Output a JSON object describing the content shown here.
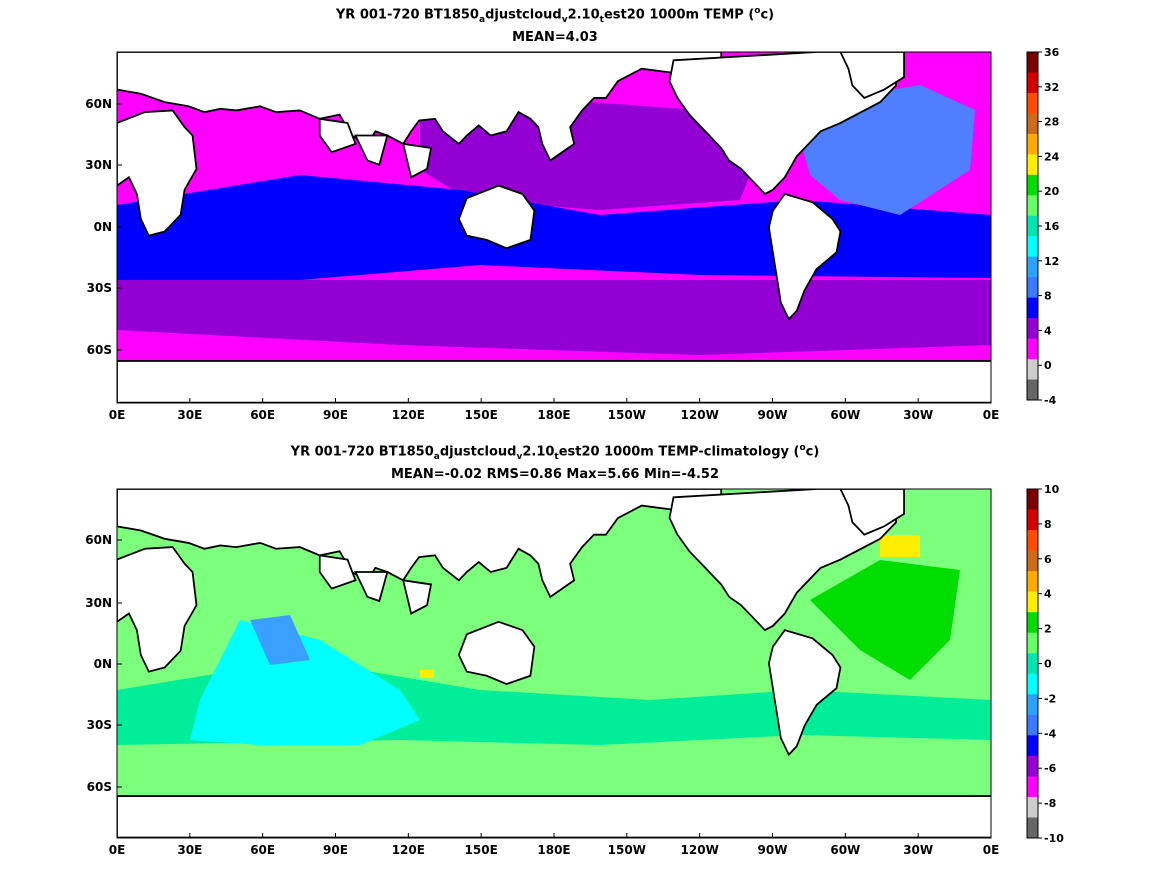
{
  "maps": [
    {
      "title_parts": {
        "a": "YR 001-720 BT1850",
        "sub1": "a",
        "b": "djustcloud",
        "sub2": "v",
        "c": "2.10",
        "sub3": "t",
        "d": "est20 1000m TEMP (",
        "sup": "o",
        "e": "c)"
      },
      "subtitle": "MEAN=4.03",
      "x_ticks": [
        "0E",
        "30E",
        "60E",
        "90E",
        "120E",
        "150E",
        "180E",
        "150W",
        "120W",
        "90W",
        "60W",
        "30W",
        "0E"
      ],
      "y_ticks": [
        "60N",
        "30N",
        "0N",
        "30S",
        "60S"
      ],
      "colorbar_ticks": [
        "36",
        "32",
        "28",
        "24",
        "20",
        "16",
        "12",
        "8",
        "4",
        "0",
        "-4"
      ],
      "colorbar_colors": [
        "#7a0000",
        "#d40000",
        "#ff4d00",
        "#cc6a1a",
        "#ffaa00",
        "#ffee00",
        "#00dd00",
        "#66ff66",
        "#00e6b0",
        "#00ffff",
        "#2aa3ff",
        "#3a7aff",
        "#0000ff",
        "#9400d3",
        "#ff00ff",
        "#cccccc",
        "#666666"
      ]
    },
    {
      "title_parts": {
        "a": "YR 001-720 BT1850",
        "sub1": "a",
        "b": "djustcloud",
        "sub2": "v",
        "c": "2.10",
        "sub3": "t",
        "d": "est20 1000m TEMP-climatology (",
        "sup": "o",
        "e": "c)"
      },
      "subtitle": "MEAN=-0.02   RMS=0.86   Max=5.66   Min=-4.52",
      "x_ticks": [
        "0E",
        "30E",
        "60E",
        "90E",
        "120E",
        "150E",
        "180E",
        "150W",
        "120W",
        "90W",
        "60W",
        "30W",
        "0E"
      ],
      "y_ticks": [
        "60N",
        "30N",
        "0N",
        "30S",
        "60S"
      ],
      "colorbar_ticks": [
        "10",
        "8",
        "6",
        "4",
        "2",
        "0",
        "-2",
        "-4",
        "-6",
        "-8",
        "-10"
      ],
      "colorbar_colors": [
        "#7a0000",
        "#d40000",
        "#ff4d00",
        "#cc6a1a",
        "#ffaa00",
        "#ffee00",
        "#00dd00",
        "#66ff66",
        "#00e6b0",
        "#00ffff",
        "#2aa3ff",
        "#3a7aff",
        "#0000ff",
        "#9400d3",
        "#ff00ff",
        "#cccccc",
        "#666666"
      ]
    }
  ],
  "colors": {
    "land": "#ffffff",
    "coast": "#000000",
    "top_magenta": "#ff00ff",
    "top_purple": "#9400d3",
    "top_blue": "#0000ff",
    "top_lightblue": "#4f7fff",
    "top_teal": "#00e6b0",
    "bot_lightgreen": "#7cff7c",
    "bot_green": "#00dd00",
    "bot_seagreen": "#00ee99",
    "bot_cyan": "#00ffff",
    "bot_blue": "#3aa0ff",
    "bot_yellow": "#ffee00",
    "bot_orange": "#ffaa00"
  }
}
